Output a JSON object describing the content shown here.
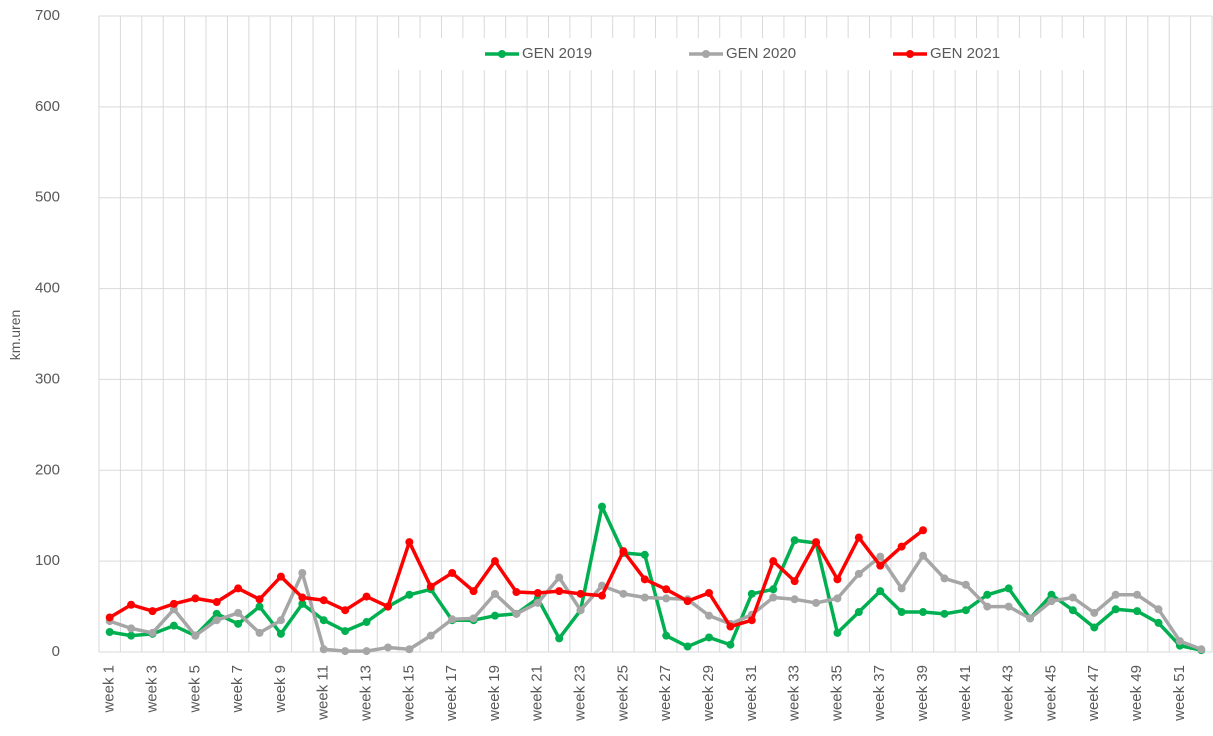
{
  "chart_data": {
    "type": "line",
    "y_label": "km.uren",
    "categories": [
      "week 1",
      null,
      "week 3",
      null,
      "week 5",
      null,
      "week 7",
      null,
      "week 9",
      null,
      "week 11",
      null,
      "week 13",
      null,
      "week 15",
      null,
      "week 17",
      null,
      "week 19",
      null,
      "week 21",
      null,
      "week 23",
      null,
      "week 25",
      null,
      "week 27",
      null,
      "week 29",
      null,
      "week 31",
      null,
      "week 33",
      null,
      "week 35",
      null,
      "week 37",
      null,
      "week 39",
      null,
      "week 41",
      null,
      "week 43",
      null,
      "week 45",
      null,
      "week 47",
      null,
      "week 49",
      null,
      "week 51",
      null
    ],
    "series": [
      {
        "name": "GEN 2019",
        "color": "#00b050",
        "values": [
          22,
          18,
          20,
          29,
          18,
          42,
          31,
          50,
          20,
          53,
          35,
          23,
          33,
          50,
          63,
          69,
          35,
          35,
          40,
          42,
          59,
          15,
          46,
          160,
          109,
          107,
          18,
          6,
          16,
          8,
          64,
          69,
          123,
          120,
          21,
          44,
          67,
          44,
          44,
          42,
          46,
          63,
          70,
          37,
          63,
          46,
          27,
          47,
          45,
          32,
          7,
          2
        ]
      },
      {
        "name": "GEN 2020",
        "color": "#a6a6a6",
        "values": [
          34,
          26,
          21,
          47,
          18,
          35,
          43,
          21,
          35,
          87,
          3,
          1,
          1,
          5,
          3,
          18,
          36,
          37,
          64,
          42,
          54,
          82,
          46,
          73,
          64,
          60,
          59,
          58,
          40,
          31,
          41,
          60,
          58,
          54,
          59,
          86,
          105,
          70,
          106,
          81,
          74,
          50,
          50,
          37,
          56,
          60,
          43,
          63,
          63,
          47,
          12,
          3
        ]
      },
      {
        "name": "GEN 2021",
        "color": "#ff0000",
        "values": [
          38,
          52,
          45,
          53,
          59,
          55,
          70,
          58,
          83,
          60,
          57,
          46,
          61,
          50,
          121,
          72,
          87,
          67,
          100,
          66,
          65,
          67,
          64,
          62,
          111,
          80,
          69,
          56,
          65,
          28,
          35,
          100,
          78,
          121,
          80,
          126,
          95,
          116,
          134,
          null,
          null,
          null,
          null,
          null,
          null,
          null,
          null,
          null,
          null,
          null,
          null,
          null
        ]
      }
    ],
    "ylim": [
      0,
      700
    ],
    "yticks": [
      0,
      100,
      200,
      300,
      400,
      500,
      600,
      700
    ],
    "grid": true,
    "legend": "top"
  }
}
